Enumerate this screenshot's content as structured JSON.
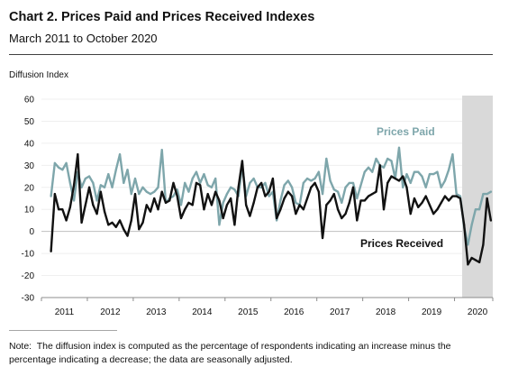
{
  "chart_data": {
    "type": "line",
    "title": "Chart 2. Prices Paid and Prices Received Indexes",
    "subtitle": "March 2011 to October 2020",
    "xlabel": "",
    "ylabel": "Diffusion Index",
    "ylim": [
      -30,
      60
    ],
    "yticks": [
      60,
      50,
      40,
      30,
      20,
      10,
      0,
      -10,
      -20,
      -30
    ],
    "xlim": [
      "2011-01",
      "2020-10"
    ],
    "xtick_labels": [
      "2011",
      "2012",
      "2013",
      "2014",
      "2015",
      "2016",
      "2017",
      "2018",
      "2019",
      "2020"
    ],
    "grid": true,
    "legend": "direct labels",
    "shaded_period": [
      "2020-03",
      "2020-10"
    ],
    "shade_color": "#d9d9d9",
    "x": [
      "2011-03",
      "2011-04",
      "2011-05",
      "2011-06",
      "2011-07",
      "2011-08",
      "2011-09",
      "2011-10",
      "2011-11",
      "2011-12",
      "2012-01",
      "2012-02",
      "2012-03",
      "2012-04",
      "2012-05",
      "2012-06",
      "2012-07",
      "2012-08",
      "2012-09",
      "2012-10",
      "2012-11",
      "2012-12",
      "2013-01",
      "2013-02",
      "2013-03",
      "2013-04",
      "2013-05",
      "2013-06",
      "2013-07",
      "2013-08",
      "2013-09",
      "2013-10",
      "2013-11",
      "2013-12",
      "2014-01",
      "2014-02",
      "2014-03",
      "2014-04",
      "2014-05",
      "2014-06",
      "2014-07",
      "2014-08",
      "2014-09",
      "2014-10",
      "2014-11",
      "2014-12",
      "2015-01",
      "2015-02",
      "2015-03",
      "2015-04",
      "2015-05",
      "2015-06",
      "2015-07",
      "2015-08",
      "2015-09",
      "2015-10",
      "2015-11",
      "2015-12",
      "2016-01",
      "2016-02",
      "2016-03",
      "2016-04",
      "2016-05",
      "2016-06",
      "2016-07",
      "2016-08",
      "2016-09",
      "2016-10",
      "2016-11",
      "2016-12",
      "2017-01",
      "2017-02",
      "2017-03",
      "2017-04",
      "2017-05",
      "2017-06",
      "2017-07",
      "2017-08",
      "2017-09",
      "2017-10",
      "2017-11",
      "2017-12",
      "2018-01",
      "2018-02",
      "2018-03",
      "2018-04",
      "2018-05",
      "2018-06",
      "2018-07",
      "2018-08",
      "2018-09",
      "2018-10",
      "2018-11",
      "2018-12",
      "2019-01",
      "2019-02",
      "2019-03",
      "2019-04",
      "2019-05",
      "2019-06",
      "2019-07",
      "2019-08",
      "2019-09",
      "2019-10",
      "2019-11",
      "2019-12",
      "2020-01",
      "2020-02",
      "2020-03",
      "2020-04",
      "2020-05",
      "2020-06",
      "2020-07",
      "2020-08",
      "2020-09",
      "2020-10"
    ],
    "series": [
      {
        "name": "Prices Paid",
        "color": "#7ea6ab",
        "values": [
          16,
          31,
          29,
          28,
          31,
          22,
          14,
          27,
          20,
          24,
          25,
          22,
          14,
          21,
          20,
          26,
          20,
          28,
          35,
          22,
          28,
          17,
          24,
          17,
          20,
          18,
          17,
          18,
          20,
          37,
          13,
          15,
          16,
          19,
          12,
          22,
          18,
          24,
          27,
          22,
          26,
          21,
          20,
          24,
          3,
          13,
          17,
          20,
          19,
          16,
          30,
          16,
          22,
          24,
          20,
          20,
          22,
          16,
          18,
          5,
          14,
          21,
          23,
          20,
          13,
          12,
          22,
          24,
          23,
          24,
          27,
          17,
          33,
          23,
          19,
          18,
          13,
          20,
          22,
          22,
          15,
          21,
          27,
          29,
          27,
          33,
          30,
          29,
          33,
          32,
          24,
          38,
          20,
          26,
          22,
          27,
          27,
          25,
          20,
          26,
          26,
          27,
          20,
          23,
          28,
          35,
          17,
          16,
          2,
          -6,
          3,
          10,
          10,
          17,
          17,
          18
        ]
      },
      {
        "name": "Prices Received",
        "color": "#111111",
        "values": [
          -9,
          17,
          10,
          10,
          5,
          11,
          21,
          35,
          4,
          12,
          20,
          12,
          8,
          18,
          9,
          3,
          4,
          2,
          5,
          1,
          -2,
          5,
          17,
          1,
          4,
          12,
          9,
          15,
          10,
          18,
          13,
          14,
          22,
          16,
          6,
          10,
          13,
          12,
          22,
          21,
          10,
          17,
          12,
          18,
          14,
          6,
          12,
          15,
          3,
          20,
          32,
          12,
          7,
          13,
          20,
          22,
          16,
          18,
          24,
          6,
          10,
          15,
          18,
          16,
          8,
          12,
          10,
          15,
          20,
          22,
          18,
          -3,
          12,
          14,
          17,
          10,
          6,
          8,
          13,
          20,
          5,
          14,
          14,
          16,
          17,
          18,
          30,
          10,
          22,
          25,
          24,
          23,
          25,
          20,
          8,
          15,
          11,
          13,
          16,
          12,
          8,
          10,
          13,
          16,
          14,
          16,
          16,
          15,
          3,
          -15,
          -12,
          -13,
          -14,
          -6,
          15,
          5
        ]
      }
    ]
  },
  "note": {
    "lines": [
      "Note:  The diffusion index is computed as the percentage of respondents indicating an increase minus the",
      "percentage indicating a decrease; the data are seasonally adjusted."
    ]
  }
}
